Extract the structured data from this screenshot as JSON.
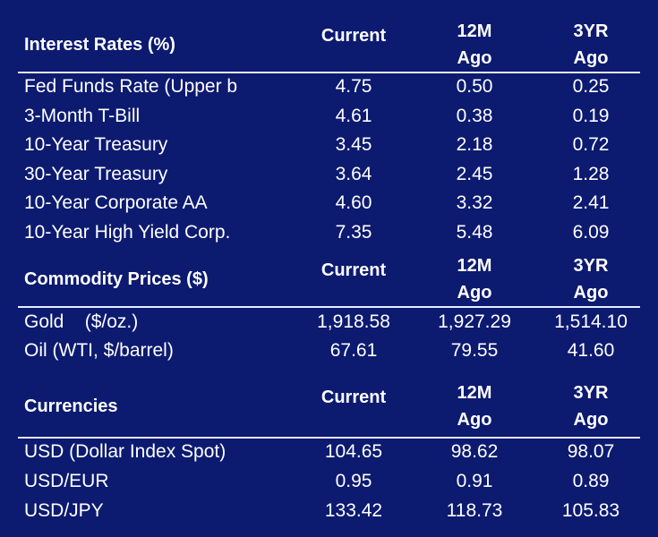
{
  "sections": [
    {
      "title": "Interest Rates (%)",
      "columns": [
        "Current",
        "12M\nAgo",
        "3YR\nAgo"
      ],
      "rows": [
        [
          "Fed Funds Rate (Upper b",
          "4.75",
          "0.50",
          "0.25"
        ],
        [
          "3-Month T-Bill",
          "4.61",
          "0.38",
          "0.19"
        ],
        [
          "10-Year Treasury",
          "3.45",
          "2.18",
          "0.72"
        ],
        [
          "30-Year Treasury",
          "3.64",
          "2.45",
          "1.28"
        ],
        [
          "10-Year Corporate AA",
          "4.60",
          "3.32",
          "2.41"
        ],
        [
          "10-Year High Yield Corp.",
          "7.35",
          "5.48",
          "6.09"
        ]
      ]
    },
    {
      "title": "Commodity Prices ($)",
      "columns": [
        "Current",
        "12M\nAgo",
        "3YR\nAgo"
      ],
      "rows": [
        [
          "Gold    ($/oz.)",
          "1,918.58",
          "1,927.29",
          "1,514.10"
        ],
        [
          "Oil (WTI, $/barrel)",
          "67.61",
          "79.55",
          "41.60"
        ]
      ]
    },
    {
      "title": "Currencies",
      "columns": [
        "Current",
        "12M\nAgo",
        "3YR\nAgo"
      ],
      "rows": [
        [
          "USD (Dollar Index Spot)",
          "104.65",
          "98.62",
          "98.07"
        ],
        [
          "USD/EUR",
          "0.95",
          "0.91",
          "0.89"
        ],
        [
          "USD/JPY",
          "133.42",
          "118.73",
          "105.83"
        ]
      ]
    }
  ]
}
